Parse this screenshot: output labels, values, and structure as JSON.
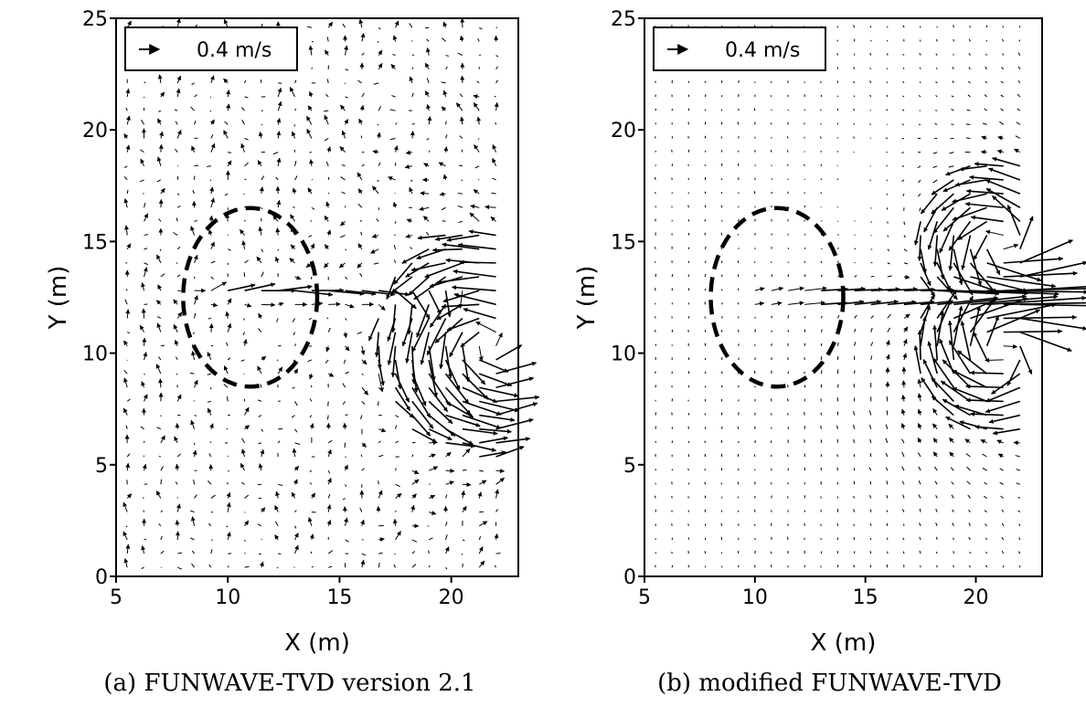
{
  "chart_data": [
    {
      "type": "vector_field",
      "caption": "(a) FUNWAVE-TVD version 2.1",
      "xlabel": "X (m)",
      "ylabel": "Y (m)",
      "xlim": [
        5,
        23
      ],
      "ylim": [
        0,
        25
      ],
      "xticks": [
        5,
        10,
        15,
        20
      ],
      "yticks": [
        0,
        5,
        10,
        15,
        20,
        25
      ],
      "legend": {
        "label": "0.4 m/s",
        "reference_speed": 0.4,
        "placement": "top-left"
      },
      "ellipse": {
        "cx": 11,
        "cy": 12.5,
        "rx": 3,
        "ry": 4,
        "style": "dashed"
      },
      "jet": {
        "y": 12.7,
        "x_start": 8.5,
        "x_end": 20.5,
        "speed": 0.4
      },
      "eddies": [
        {
          "x": 21.8,
          "y": 10.5,
          "r": 2.4,
          "strength": 0.45,
          "sense": "ccw"
        }
      ],
      "background_noise": 0.16
    },
    {
      "type": "vector_field",
      "caption": "(b) modified FUNWAVE-TVD",
      "xlabel": "X (m)",
      "ylabel": "Y (m)",
      "xlim": [
        5,
        23
      ],
      "ylim": [
        0,
        25
      ],
      "xticks": [
        5,
        10,
        15,
        20
      ],
      "yticks": [
        0,
        5,
        10,
        15,
        20,
        25
      ],
      "legend": {
        "label": "0.4 m/s",
        "reference_speed": 0.4,
        "placement": "top-left"
      },
      "ellipse": {
        "cx": 11,
        "cy": 12.5,
        "rx": 3,
        "ry": 4,
        "style": "dashed"
      },
      "jet": {
        "y": 12.5,
        "x_start": 10.5,
        "x_end": 23,
        "speed": 0.45
      },
      "eddies": [
        {
          "x": 21.2,
          "y": 14.8,
          "r": 1.8,
          "strength": 0.45,
          "sense": "ccw"
        },
        {
          "x": 21.2,
          "y": 10.2,
          "r": 1.8,
          "strength": 0.45,
          "sense": "cw"
        }
      ],
      "background_noise": 0.02
    }
  ]
}
